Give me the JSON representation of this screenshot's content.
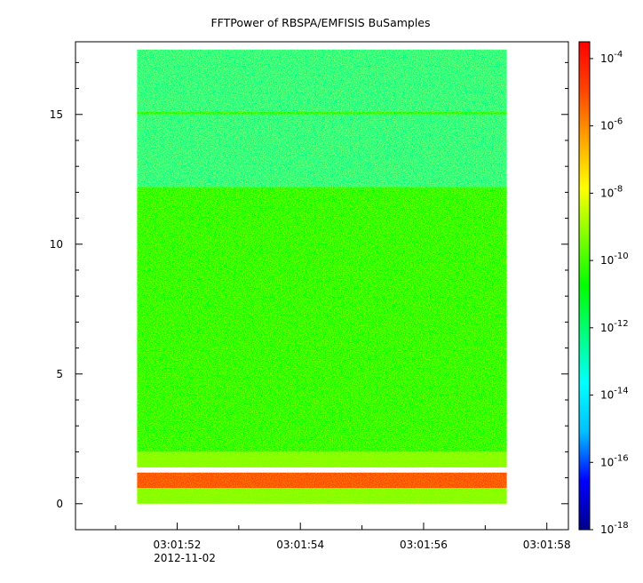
{
  "chart_data": {
    "type": "heatmap",
    "title": "FFTPower of RBSPA/EMFISIS  BuSamples",
    "xlabel": "",
    "ylabel": "",
    "x_ticks": [
      "03:01:52",
      "03:01:54",
      "03:01:56",
      "03:01:58"
    ],
    "x_tick_seconds": [
      52,
      54,
      56,
      58
    ],
    "x_minor_seconds": [
      51,
      53,
      55,
      57
    ],
    "x_date_label": "2012-11-02",
    "xlim_seconds": [
      50.35,
      58.35
    ],
    "x_data_range_seconds": [
      51.35,
      57.35
    ],
    "y_ticks": [
      0,
      5,
      10,
      15
    ],
    "ylim": [
      -1.0,
      17.8
    ],
    "y_data_range": [
      0,
      17.5
    ],
    "colorbar": {
      "scale": "log",
      "min_exp": -18,
      "max_exp": -3.5,
      "ticks": [
        {
          "base": "10",
          "exp": "-4",
          "value": -4
        },
        {
          "base": "10",
          "exp": "-6",
          "value": -6
        },
        {
          "base": "10",
          "exp": "-8",
          "value": -8
        },
        {
          "base": "10",
          "exp": "-10",
          "value": -10
        },
        {
          "base": "10",
          "exp": "-12",
          "value": -12
        },
        {
          "base": "10",
          "exp": "-14",
          "value": -14
        },
        {
          "base": "10",
          "exp": "-16",
          "value": -16
        },
        {
          "base": "10",
          "exp": "-18",
          "value": -18
        }
      ],
      "colors": [
        "#00008b",
        "#0000ff",
        "#00bfff",
        "#00ffff",
        "#00ff7f",
        "#00ff00",
        "#7fff00",
        "#ffff00",
        "#ffa500",
        "#ff4500",
        "#ff0000"
      ]
    },
    "bands": [
      {
        "y_from": 12.2,
        "y_to": 17.5,
        "log_power": -12.4
      },
      {
        "y_from": 2.0,
        "y_to": 12.2,
        "log_power": -10.5
      },
      {
        "y_from": 1.4,
        "y_to": 2.0,
        "log_power": -9.5
      },
      {
        "y_from": 0.6,
        "y_to": 1.2,
        "log_power": -5.5
      },
      {
        "y_from": 0.0,
        "y_to": 0.6,
        "log_power": -8.7
      }
    ],
    "lines": [
      {
        "y": 15.05,
        "log_power": -10.2
      }
    ]
  }
}
